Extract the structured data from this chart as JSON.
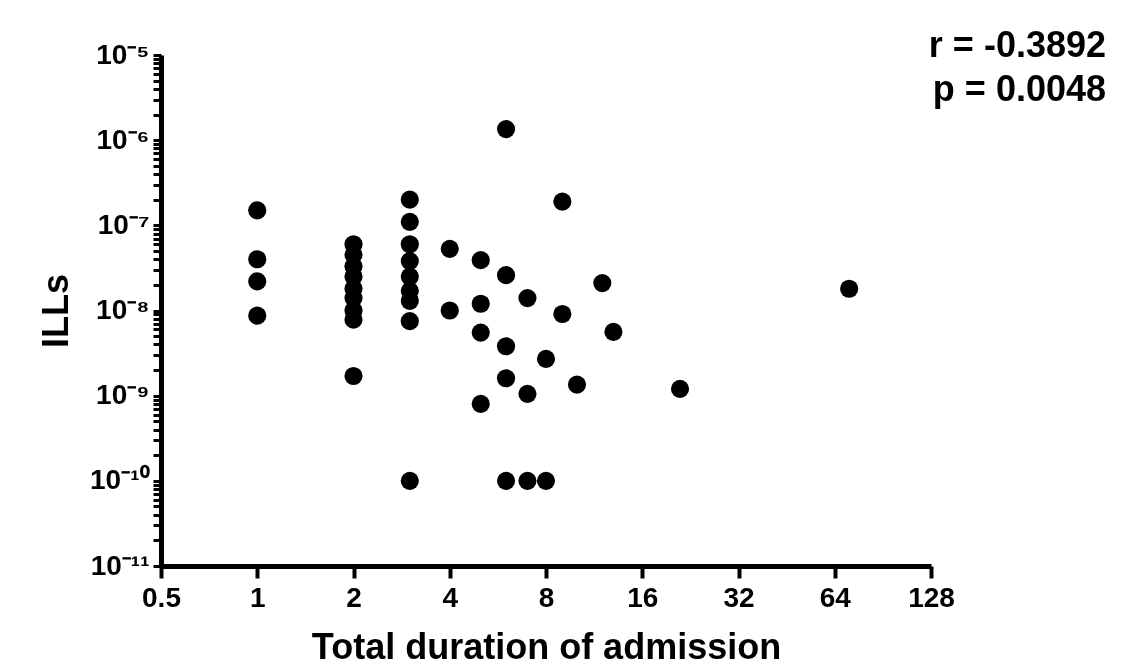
{
  "chart_data": {
    "type": "scatter",
    "xlabel": "Total duration of admission",
    "ylabel": "ILLs",
    "log": "xy",
    "grid": false,
    "marker": "circle",
    "annotations": [
      "r = -0.3892",
      "p = 0.0048"
    ],
    "xlim": [
      0.5,
      128
    ],
    "xticks": [
      0.5,
      1,
      2,
      4,
      8,
      16,
      32,
      64,
      128
    ],
    "ylim": [
      1e-11,
      1e-05
    ],
    "yticks": [
      {
        "value": 1e-11,
        "label": "10⁻¹¹"
      },
      {
        "value": 2e-11,
        "label": null
      },
      {
        "value": 3e-11,
        "label": null
      },
      {
        "value": 4e-11,
        "label": null
      },
      {
        "value": 5e-11,
        "label": null
      },
      {
        "value": 6e-11,
        "label": null
      },
      {
        "value": 7e-11,
        "label": null
      },
      {
        "value": 8e-11,
        "label": null
      },
      {
        "value": 9e-11,
        "label": null
      },
      {
        "value": 1e-10,
        "label": "10⁻¹⁰"
      },
      {
        "value": 2e-10,
        "label": null
      },
      {
        "value": 3e-10,
        "label": null
      },
      {
        "value": 4e-10,
        "label": null
      },
      {
        "value": 5e-10,
        "label": null
      },
      {
        "value": 6e-10,
        "label": null
      },
      {
        "value": 7e-10,
        "label": null
      },
      {
        "value": 8e-10,
        "label": null
      },
      {
        "value": 9e-10,
        "label": null
      },
      {
        "value": 1e-09,
        "label": "10⁻⁹"
      },
      {
        "value": 2e-09,
        "label": null
      },
      {
        "value": 3e-09,
        "label": null
      },
      {
        "value": 4e-09,
        "label": null
      },
      {
        "value": 5e-09,
        "label": null
      },
      {
        "value": 6e-09,
        "label": null
      },
      {
        "value": 7e-09,
        "label": null
      },
      {
        "value": 8e-09,
        "label": null
      },
      {
        "value": 9e-09,
        "label": null
      },
      {
        "value": 1e-08,
        "label": "10⁻⁸"
      },
      {
        "value": 2e-08,
        "label": null
      },
      {
        "value": 3e-08,
        "label": null
      },
      {
        "value": 4e-08,
        "label": null
      },
      {
        "value": 5e-08,
        "label": null
      },
      {
        "value": 6e-08,
        "label": null
      },
      {
        "value": 7e-08,
        "label": null
      },
      {
        "value": 8e-08,
        "label": null
      },
      {
        "value": 9e-08,
        "label": null
      },
      {
        "value": 1e-07,
        "label": "10⁻⁷"
      },
      {
        "value": 2e-07,
        "label": null
      },
      {
        "value": 3e-07,
        "label": null
      },
      {
        "value": 4e-07,
        "label": null
      },
      {
        "value": 5e-07,
        "label": null
      },
      {
        "value": 6e-07,
        "label": null
      },
      {
        "value": 7e-07,
        "label": null
      },
      {
        "value": 8e-07,
        "label": null
      },
      {
        "value": 9e-07,
        "label": null
      },
      {
        "value": 1e-06,
        "label": "10⁻⁶"
      },
      {
        "value": 2e-06,
        "label": null
      },
      {
        "value": 3e-06,
        "label": null
      },
      {
        "value": 4e-06,
        "label": null
      },
      {
        "value": 5e-06,
        "label": null
      },
      {
        "value": 6e-06,
        "label": null
      },
      {
        "value": 7e-06,
        "label": null
      },
      {
        "value": 8e-06,
        "label": null
      },
      {
        "value": 9e-06,
        "label": null
      },
      {
        "value": 1e-05,
        "label": "10⁻⁵"
      }
    ],
    "series": [
      {
        "color": "#000000",
        "x": [
          1,
          1,
          1,
          1,
          2,
          2,
          2,
          2,
          2,
          2,
          2,
          2,
          2,
          3,
          3,
          3,
          3,
          3,
          3,
          3,
          3,
          3,
          4,
          4,
          5,
          5,
          5,
          5,
          6,
          6,
          6,
          6,
          6,
          7,
          7,
          7,
          8,
          8,
          9,
          9,
          10,
          12,
          13,
          21,
          71
        ],
        "values": [
          1.5e-07,
          4e-08,
          2.2e-08,
          8.7e-09,
          6e-08,
          4.5e-08,
          3.3e-08,
          2.5e-08,
          1.8e-08,
          1.4e-08,
          1e-08,
          7.8e-09,
          1.7e-09,
          2e-07,
          1.1e-07,
          6e-08,
          3.8e-08,
          2.5e-08,
          1.7e-08,
          1.3e-08,
          7.5e-09,
          1e-10,
          5.3e-08,
          1e-08,
          3.9e-08,
          1.2e-08,
          5.5e-09,
          8e-10,
          1.35e-06,
          2.6e-08,
          3.8e-09,
          1.6e-09,
          1e-10,
          1.4e-08,
          1.05e-09,
          1e-10,
          2.7e-09,
          1e-10,
          1.9e-07,
          9.1e-09,
          1.35e-09,
          2.1e-08,
          5.6e-09,
          1.2e-09,
          1.8e-08
        ]
      }
    ]
  }
}
